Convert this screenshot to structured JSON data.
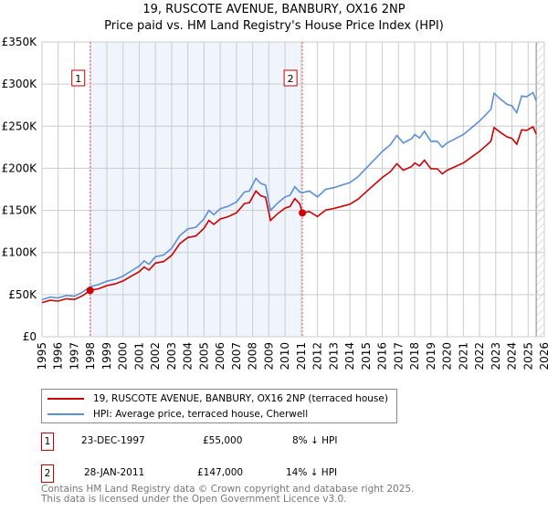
{
  "chart_data": {
    "type": "line",
    "title": "19, RUSCOTE AVENUE, BANBURY, OX16 2NP",
    "subtitle": "Price paid vs. HM Land Registry's House Price Index (HPI)",
    "xlim": [
      1995,
      2026
    ],
    "ylim": [
      0,
      350000
    ],
    "x_ticks": [
      "1995",
      "1996",
      "1997",
      "1998",
      "1999",
      "2000",
      "2001",
      "2002",
      "2003",
      "2004",
      "2005",
      "2006",
      "2007",
      "2008",
      "2009",
      "2010",
      "2011",
      "2012",
      "2013",
      "2014",
      "2015",
      "2016",
      "2017",
      "2018",
      "2019",
      "2020",
      "2021",
      "2022",
      "2023",
      "2024",
      "2025",
      "2026"
    ],
    "y_ticks": [
      {
        "v": 0,
        "label": "£0"
      },
      {
        "v": 50000,
        "label": "£50K"
      },
      {
        "v": 100000,
        "label": "£100K"
      },
      {
        "v": 150000,
        "label": "£150K"
      },
      {
        "v": 200000,
        "label": "£200K"
      },
      {
        "v": 250000,
        "label": "£250K"
      },
      {
        "v": 300000,
        "label": "£300K"
      },
      {
        "v": 350000,
        "label": "£350K"
      }
    ],
    "grid": true,
    "shaded_range": [
      1997.97,
      2011.07
    ],
    "forecast_hatch_from": 2025.5,
    "series": [
      {
        "name": "HPI: Average price, terraced house, Cherwell",
        "color": "#5b8fd6",
        "x": [
          1995,
          1995.5,
          1996,
          1996.5,
          1997,
          1997.5,
          1997.97,
          1998.5,
          1999,
          1999.5,
          2000,
          2000.5,
          2001,
          2001.3,
          2001.6,
          2002,
          2002.5,
          2003,
          2003.5,
          2004,
          2004.5,
          2005,
          2005.3,
          2005.6,
          2006,
          2006.5,
          2007,
          2007.5,
          2007.8,
          2008.2,
          2008.5,
          2008.8,
          2009.1,
          2009.5,
          2010,
          2010.3,
          2010.6,
          2010.9,
          2011.07,
          2011.5,
          2012,
          2012.5,
          2013,
          2013.5,
          2014,
          2014.5,
          2015,
          2015.5,
          2016,
          2016.5,
          2016.9,
          2017.3,
          2017.8,
          2018,
          2018.3,
          2018.6,
          2019,
          2019.4,
          2019.7,
          2020,
          2020.5,
          2021,
          2021.5,
          2022,
          2022.3,
          2022.7,
          2022.9,
          2023.3,
          2023.7,
          2024,
          2024.3,
          2024.6,
          2024.9,
          2025.3,
          2025.5
        ],
        "y": [
          44000,
          47000,
          46000,
          49000,
          48000,
          53000,
          59500,
          62000,
          66000,
          68000,
          72000,
          78000,
          84000,
          90000,
          86000,
          95000,
          97000,
          105000,
          120000,
          128000,
          130000,
          140000,
          150000,
          145000,
          152000,
          155000,
          160000,
          172000,
          173000,
          188000,
          182000,
          180000,
          150000,
          158000,
          166000,
          168000,
          178000,
          172000,
          171000,
          173000,
          166000,
          175000,
          177000,
          180000,
          183000,
          190000,
          200000,
          210000,
          220000,
          228000,
          239000,
          230000,
          235000,
          240000,
          236000,
          244000,
          232000,
          232000,
          225000,
          230000,
          235000,
          240000,
          248000,
          256000,
          262000,
          270000,
          289000,
          282000,
          276000,
          274000,
          266000,
          286000,
          285000,
          290000,
          280000
        ]
      },
      {
        "name": "19, RUSCOTE AVENUE, BANBURY, OX16 2NP (terraced house)",
        "color": "#cc0000",
        "x": [
          1995,
          1995.5,
          1996,
          1996.5,
          1997,
          1997.5,
          1997.97,
          1998.5,
          1999,
          1999.5,
          2000,
          2000.5,
          2001,
          2001.3,
          2001.6,
          2002,
          2002.5,
          2003,
          2003.5,
          2004,
          2004.5,
          2005,
          2005.3,
          2005.6,
          2006,
          2006.5,
          2007,
          2007.5,
          2007.8,
          2008.2,
          2008.5,
          2008.8,
          2009.1,
          2009.5,
          2010,
          2010.3,
          2010.6,
          2010.9,
          2011.07,
          2011.5,
          2012,
          2012.5,
          2013,
          2013.5,
          2014,
          2014.5,
          2015,
          2015.5,
          2016,
          2016.5,
          2016.9,
          2017.3,
          2017.8,
          2018,
          2018.3,
          2018.6,
          2019,
          2019.4,
          2019.7,
          2020,
          2020.5,
          2021,
          2021.5,
          2022,
          2022.3,
          2022.7,
          2022.9,
          2023.3,
          2023.7,
          2024,
          2024.3,
          2024.6,
          2024.9,
          2025.3,
          2025.5
        ],
        "y": [
          40500,
          43200,
          42300,
          45100,
          44200,
          48700,
          55000,
          57000,
          60700,
          62600,
          66200,
          71800,
          77300,
          82800,
          79100,
          87400,
          89200,
          96600,
          110400,
          117800,
          119600,
          128800,
          138000,
          133400,
          139800,
          142600,
          147200,
          158200,
          159200,
          173000,
          167400,
          165600,
          138000,
          145400,
          152700,
          154600,
          164000,
          158000,
          147000,
          148700,
          142700,
          150400,
          152200,
          154700,
          157300,
          163300,
          172000,
          180500,
          189100,
          196000,
          205400,
          197700,
          202000,
          206300,
          202900,
          209700,
          199400,
          199400,
          193400,
          197700,
          202000,
          206300,
          213200,
          220100,
          225200,
          232100,
          248400,
          242400,
          237300,
          235500,
          228600,
          245800,
          245000,
          249300,
          240700
        ]
      }
    ],
    "sales": [
      {
        "label": "1",
        "date": "23-DEC-1997",
        "x": 1997.97,
        "price": "£55,000",
        "value": 55000,
        "hpi": "8% ↓ HPI"
      },
      {
        "label": "2",
        "date": "28-JAN-2011",
        "x": 2011.07,
        "price": "£147,000",
        "value": 147000,
        "hpi": "14% ↓ HPI"
      }
    ]
  },
  "legend": {
    "red": "19, RUSCOTE AVENUE, BANBURY, OX16 2NP (terraced house)",
    "blue": "HPI: Average price, terraced house, Cherwell"
  },
  "footer": {
    "line1": "Contains HM Land Registry data © Crown copyright and database right 2025.",
    "line2": "This data is licensed under the Open Government Licence v3.0."
  }
}
